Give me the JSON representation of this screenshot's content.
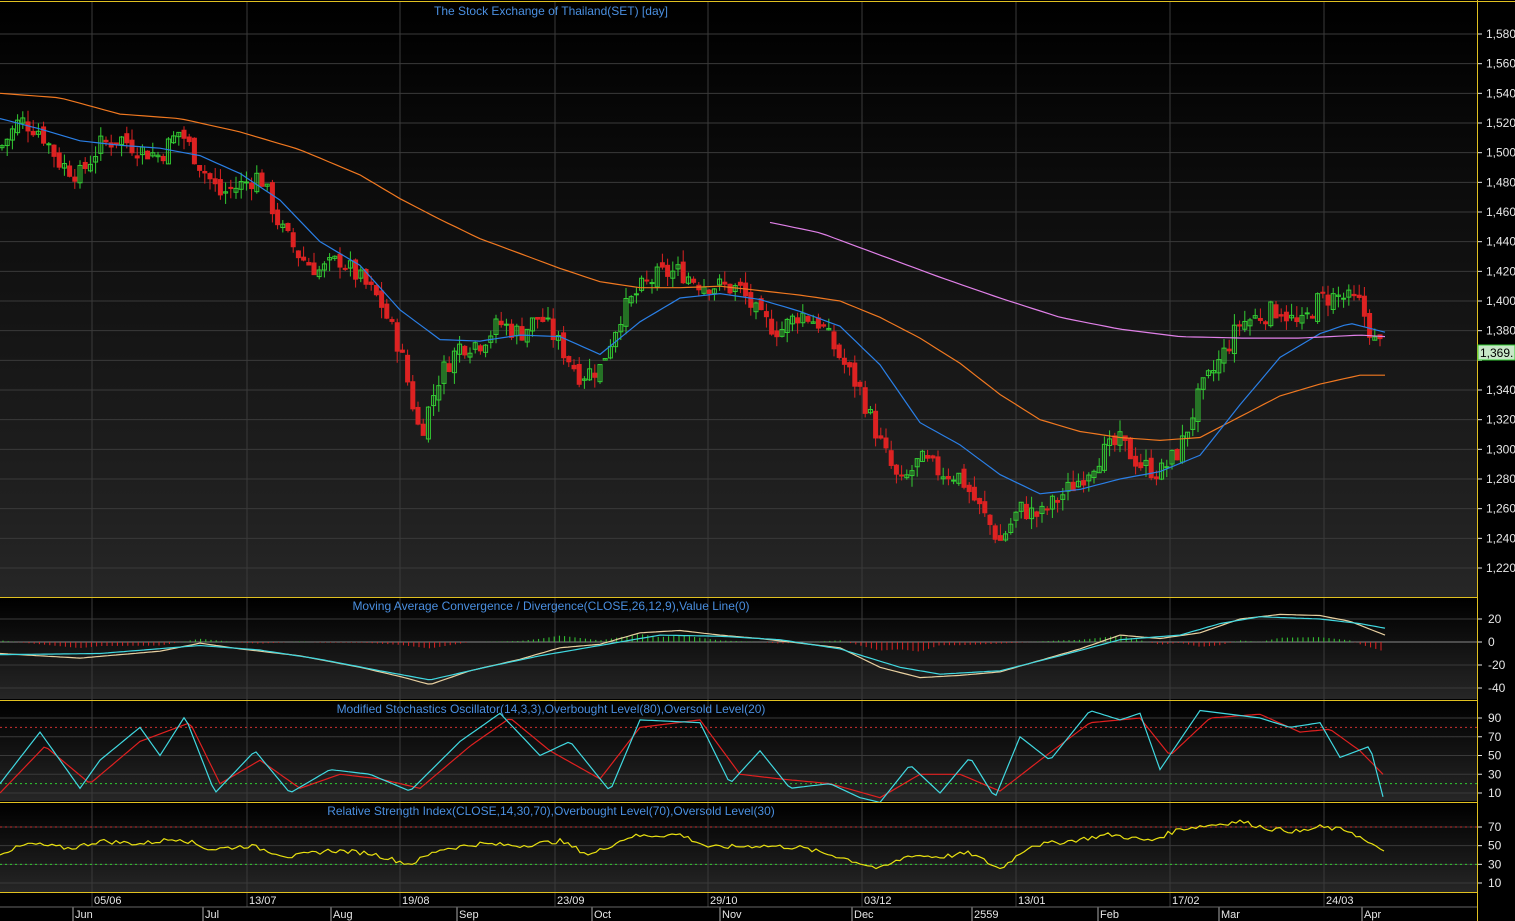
{
  "chart_data": [
    {
      "type": "candlestick",
      "title": "The Stock Exchange of Thailand(SET) [day]",
      "ylim": [
        1210,
        1590
      ],
      "yticks": [
        1220,
        1240,
        1260,
        1280,
        1300,
        1320,
        1340,
        1360,
        1380,
        1400,
        1420,
        1440,
        1460,
        1480,
        1500,
        1520,
        1540,
        1560,
        1580
      ],
      "ytick_labels": [
        "1,220",
        "1,240",
        "1,260",
        "1,280",
        "1,300",
        "1,320",
        "1,340",
        "",
        "1,380",
        "1,400",
        "1,420",
        "1,440",
        "1,460",
        "1,480",
        "1,500",
        "1,520",
        "1,540",
        "1,560",
        "1,580"
      ],
      "last_price_label": "1,369.",
      "last_price": 1369,
      "close_path": [
        [
          0,
          1503
        ],
        [
          20,
          1522
        ],
        [
          40,
          1515
        ],
        [
          60,
          1493
        ],
        [
          80,
          1485
        ],
        [
          100,
          1505
        ],
        [
          120,
          1510
        ],
        [
          140,
          1502
        ],
        [
          160,
          1498
        ],
        [
          180,
          1515
        ],
        [
          200,
          1492
        ],
        [
          220,
          1472
        ],
        [
          240,
          1478
        ],
        [
          260,
          1485
        ],
        [
          280,
          1450
        ],
        [
          300,
          1430
        ],
        [
          320,
          1420
        ],
        [
          340,
          1428
        ],
        [
          360,
          1415
        ],
        [
          380,
          1400
        ],
        [
          400,
          1368
        ],
        [
          420,
          1310
        ],
        [
          440,
          1350
        ],
        [
          460,
          1370
        ],
        [
          480,
          1372
        ],
        [
          500,
          1385
        ],
        [
          520,
          1378
        ],
        [
          540,
          1390
        ],
        [
          560,
          1370
        ],
        [
          580,
          1350
        ],
        [
          600,
          1355
        ],
        [
          620,
          1390
        ],
        [
          640,
          1408
        ],
        [
          660,
          1418
        ],
        [
          680,
          1420
        ],
        [
          700,
          1412
        ],
        [
          720,
          1410
        ],
        [
          740,
          1408
        ],
        [
          760,
          1388
        ],
        [
          780,
          1380
        ],
        [
          800,
          1392
        ],
        [
          820,
          1385
        ],
        [
          840,
          1362
        ],
        [
          860,
          1340
        ],
        [
          880,
          1305
        ],
        [
          900,
          1275
        ],
        [
          920,
          1293
        ],
        [
          940,
          1285
        ],
        [
          960,
          1282
        ],
        [
          980,
          1260
        ],
        [
          1000,
          1238
        ],
        [
          1020,
          1260
        ],
        [
          1040,
          1255
        ],
        [
          1060,
          1268
        ],
        [
          1080,
          1280
        ],
        [
          1100,
          1296
        ],
        [
          1120,
          1305
        ],
        [
          1140,
          1290
        ],
        [
          1160,
          1284
        ],
        [
          1180,
          1300
        ],
        [
          1200,
          1338
        ],
        [
          1220,
          1360
        ],
        [
          1240,
          1385
        ],
        [
          1260,
          1390
        ],
        [
          1280,
          1395
        ],
        [
          1300,
          1382
        ],
        [
          1320,
          1402
        ],
        [
          1340,
          1403
        ],
        [
          1360,
          1398
        ],
        [
          1375,
          1372
        ],
        [
          1385,
          1369
        ]
      ],
      "ema_fast": [
        [
          0,
          1523
        ],
        [
          40,
          1516
        ],
        [
          80,
          1508
        ],
        [
          120,
          1505
        ],
        [
          160,
          1503
        ],
        [
          200,
          1498
        ],
        [
          240,
          1486
        ],
        [
          280,
          1468
        ],
        [
          320,
          1440
        ],
        [
          360,
          1424
        ],
        [
          400,
          1394
        ],
        [
          440,
          1374
        ],
        [
          480,
          1373
        ],
        [
          520,
          1377
        ],
        [
          560,
          1376
        ],
        [
          600,
          1364
        ],
        [
          640,
          1386
        ],
        [
          680,
          1402
        ],
        [
          720,
          1405
        ],
        [
          760,
          1401
        ],
        [
          800,
          1393
        ],
        [
          840,
          1383
        ],
        [
          880,
          1357
        ],
        [
          920,
          1318
        ],
        [
          960,
          1303
        ],
        [
          1000,
          1283
        ],
        [
          1040,
          1270
        ],
        [
          1080,
          1273
        ],
        [
          1120,
          1280
        ],
        [
          1160,
          1285
        ],
        [
          1200,
          1296
        ],
        [
          1240,
          1330
        ],
        [
          1280,
          1362
        ],
        [
          1320,
          1378
        ],
        [
          1350,
          1385
        ],
        [
          1385,
          1379
        ]
      ],
      "ema_slow": [
        [
          0,
          1540
        ],
        [
          60,
          1537
        ],
        [
          120,
          1526
        ],
        [
          180,
          1523
        ],
        [
          240,
          1514
        ],
        [
          300,
          1502
        ],
        [
          360,
          1485
        ],
        [
          400,
          1469
        ],
        [
          440,
          1455
        ],
        [
          480,
          1442
        ],
        [
          520,
          1432
        ],
        [
          560,
          1422
        ],
        [
          600,
          1413
        ],
        [
          640,
          1409
        ],
        [
          680,
          1409
        ],
        [
          720,
          1410
        ],
        [
          760,
          1407
        ],
        [
          800,
          1404
        ],
        [
          840,
          1400
        ],
        [
          880,
          1389
        ],
        [
          920,
          1375
        ],
        [
          960,
          1358
        ],
        [
          1000,
          1337
        ],
        [
          1040,
          1320
        ],
        [
          1080,
          1312
        ],
        [
          1120,
          1308
        ],
        [
          1160,
          1306
        ],
        [
          1200,
          1308
        ],
        [
          1240,
          1322
        ],
        [
          1280,
          1336
        ],
        [
          1320,
          1344
        ],
        [
          1360,
          1350
        ],
        [
          1385,
          1350
        ]
      ],
      "ma_long": [
        [
          770,
          1453
        ],
        [
          820,
          1446
        ],
        [
          880,
          1431
        ],
        [
          940,
          1416
        ],
        [
          1000,
          1402
        ],
        [
          1060,
          1389
        ],
        [
          1120,
          1381
        ],
        [
          1180,
          1376
        ],
        [
          1240,
          1375
        ],
        [
          1300,
          1375
        ],
        [
          1360,
          1377
        ],
        [
          1385,
          1376
        ]
      ]
    },
    {
      "type": "line",
      "title": "Moving Average Convergence / Divergence(CLOSE,26,12,9),Value Line(0)",
      "ylim": [
        -50,
        30
      ],
      "yticks": [
        20,
        0,
        -20,
        -40
      ],
      "ytick_labels": [
        "20",
        "0",
        "-20",
        "-40"
      ],
      "macd": [
        [
          0,
          -10
        ],
        [
          80,
          -14
        ],
        [
          160,
          -8
        ],
        [
          200,
          -1
        ],
        [
          240,
          -6
        ],
        [
          300,
          -12
        ],
        [
          360,
          -22
        ],
        [
          400,
          -30
        ],
        [
          430,
          -37
        ],
        [
          470,
          -25
        ],
        [
          520,
          -15
        ],
        [
          560,
          -5
        ],
        [
          600,
          -2
        ],
        [
          640,
          8
        ],
        [
          680,
          10
        ],
        [
          720,
          6
        ],
        [
          760,
          3
        ],
        [
          800,
          -1
        ],
        [
          840,
          -5
        ],
        [
          880,
          -22
        ],
        [
          920,
          -31
        ],
        [
          960,
          -29
        ],
        [
          1000,
          -26
        ],
        [
          1040,
          -16
        ],
        [
          1080,
          -6
        ],
        [
          1120,
          6
        ],
        [
          1160,
          3
        ],
        [
          1200,
          8
        ],
        [
          1240,
          20
        ],
        [
          1280,
          24
        ],
        [
          1320,
          23
        ],
        [
          1350,
          18
        ],
        [
          1385,
          6
        ]
      ],
      "signal": [
        [
          0,
          -11
        ],
        [
          100,
          -10
        ],
        [
          200,
          -3
        ],
        [
          260,
          -7
        ],
        [
          320,
          -15
        ],
        [
          380,
          -25
        ],
        [
          430,
          -33
        ],
        [
          480,
          -23
        ],
        [
          540,
          -12
        ],
        [
          600,
          -3
        ],
        [
          660,
          6
        ],
        [
          720,
          5
        ],
        [
          780,
          2
        ],
        [
          840,
          -6
        ],
        [
          900,
          -22
        ],
        [
          940,
          -28
        ],
        [
          1000,
          -25
        ],
        [
          1060,
          -12
        ],
        [
          1120,
          2
        ],
        [
          1180,
          6
        ],
        [
          1220,
          16
        ],
        [
          1260,
          22
        ],
        [
          1320,
          20
        ],
        [
          1360,
          16
        ],
        [
          1385,
          12
        ]
      ],
      "zero_line": 0
    },
    {
      "type": "line",
      "title": "Modified Stochastics Oscillator(14,3,3),Overbought Level(80),Oversold Level(20)",
      "ylim": [
        0,
        100
      ],
      "yticks": [
        90,
        70,
        50,
        30,
        10
      ],
      "ytick_labels": [
        "90",
        "70",
        "50",
        "30",
        "10"
      ],
      "overbought": 80,
      "oversold": 20,
      "k": [
        [
          0,
          20
        ],
        [
          40,
          75
        ],
        [
          80,
          15
        ],
        [
          100,
          45
        ],
        [
          140,
          80
        ],
        [
          160,
          50
        ],
        [
          185,
          92
        ],
        [
          215,
          10
        ],
        [
          255,
          55
        ],
        [
          290,
          10
        ],
        [
          330,
          35
        ],
        [
          370,
          30
        ],
        [
          410,
          12
        ],
        [
          460,
          65
        ],
        [
          500,
          95
        ],
        [
          540,
          50
        ],
        [
          570,
          65
        ],
        [
          610,
          12
        ],
        [
          640,
          88
        ],
        [
          700,
          85
        ],
        [
          730,
          20
        ],
        [
          760,
          55
        ],
        [
          790,
          15
        ],
        [
          830,
          20
        ],
        [
          860,
          5
        ],
        [
          880,
          0
        ],
        [
          910,
          40
        ],
        [
          940,
          10
        ],
        [
          970,
          48
        ],
        [
          995,
          5
        ],
        [
          1020,
          70
        ],
        [
          1050,
          45
        ],
        [
          1090,
          98
        ],
        [
          1120,
          88
        ],
        [
          1140,
          95
        ],
        [
          1160,
          35
        ],
        [
          1200,
          98
        ],
        [
          1230,
          94
        ],
        [
          1260,
          90
        ],
        [
          1290,
          80
        ],
        [
          1320,
          85
        ],
        [
          1340,
          48
        ],
        [
          1370,
          60
        ],
        [
          1383,
          6
        ]
      ],
      "d": [
        [
          0,
          10
        ],
        [
          45,
          60
        ],
        [
          90,
          20
        ],
        [
          140,
          65
        ],
        [
          190,
          85
        ],
        [
          220,
          20
        ],
        [
          260,
          45
        ],
        [
          300,
          15
        ],
        [
          340,
          30
        ],
        [
          380,
          25
        ],
        [
          420,
          15
        ],
        [
          470,
          60
        ],
        [
          510,
          90
        ],
        [
          550,
          55
        ],
        [
          600,
          25
        ],
        [
          640,
          80
        ],
        [
          700,
          88
        ],
        [
          740,
          30
        ],
        [
          780,
          25
        ],
        [
          830,
          20
        ],
        [
          880,
          5
        ],
        [
          920,
          30
        ],
        [
          960,
          30
        ],
        [
          1000,
          12
        ],
        [
          1040,
          45
        ],
        [
          1090,
          85
        ],
        [
          1140,
          90
        ],
        [
          1170,
          50
        ],
        [
          1210,
          90
        ],
        [
          1260,
          94
        ],
        [
          1300,
          75
        ],
        [
          1330,
          78
        ],
        [
          1360,
          55
        ],
        [
          1383,
          30
        ]
      ]
    },
    {
      "type": "line",
      "title": "Relative Strength Index(CLOSE,14,30,70),Overbought Level(70),Oversold Level(30)",
      "ylim": [
        0,
        80
      ],
      "yticks": [
        70,
        50,
        30,
        10
      ],
      "ytick_labels": [
        "70",
        "50",
        "30",
        "10"
      ],
      "overbought": 70,
      "oversold": 30,
      "rsi": [
        [
          0,
          42
        ],
        [
          30,
          52
        ],
        [
          70,
          47
        ],
        [
          100,
          55
        ],
        [
          140,
          52
        ],
        [
          180,
          58
        ],
        [
          210,
          46
        ],
        [
          250,
          50
        ],
        [
          290,
          38
        ],
        [
          330,
          45
        ],
        [
          370,
          42
        ],
        [
          410,
          30
        ],
        [
          440,
          46
        ],
        [
          480,
          52
        ],
        [
          520,
          50
        ],
        [
          560,
          55
        ],
        [
          590,
          40
        ],
        [
          630,
          60
        ],
        [
          680,
          62
        ],
        [
          710,
          48
        ],
        [
          760,
          50
        ],
        [
          800,
          48
        ],
        [
          840,
          38
        ],
        [
          880,
          25
        ],
        [
          910,
          40
        ],
        [
          940,
          38
        ],
        [
          970,
          42
        ],
        [
          1000,
          25
        ],
        [
          1030,
          50
        ],
        [
          1070,
          55
        ],
        [
          1110,
          62
        ],
        [
          1150,
          55
        ],
        [
          1180,
          68
        ],
        [
          1210,
          72
        ],
        [
          1240,
          76
        ],
        [
          1270,
          68
        ],
        [
          1300,
          65
        ],
        [
          1320,
          70
        ],
        [
          1350,
          66
        ],
        [
          1375,
          48
        ],
        [
          1385,
          46
        ]
      ]
    }
  ],
  "date_labels": [
    "05/06",
    "13/07",
    "19/08",
    "23/09",
    "29/10",
    "03/12",
    "13/01",
    "17/02",
    "24/03"
  ],
  "month_labels": [
    "Jun",
    "Jul",
    "Aug",
    "Sep",
    "Oct",
    "Nov",
    "Dec",
    "2559",
    "Feb",
    "Mar",
    "Apr"
  ],
  "colors": {
    "up_candle": "#33cc33",
    "down_candle": "#dd2222",
    "ema_fast": "#2a7fe6",
    "ema_slow": "#f07820",
    "ma_long": "#e080e8",
    "macd": "#e8d0a0",
    "signal": "#40d8e0",
    "stoch_k": "#40d8e0",
    "stoch_d": "#e02020",
    "rsi": "#e8e010",
    "panel_border": "#e0c020"
  }
}
